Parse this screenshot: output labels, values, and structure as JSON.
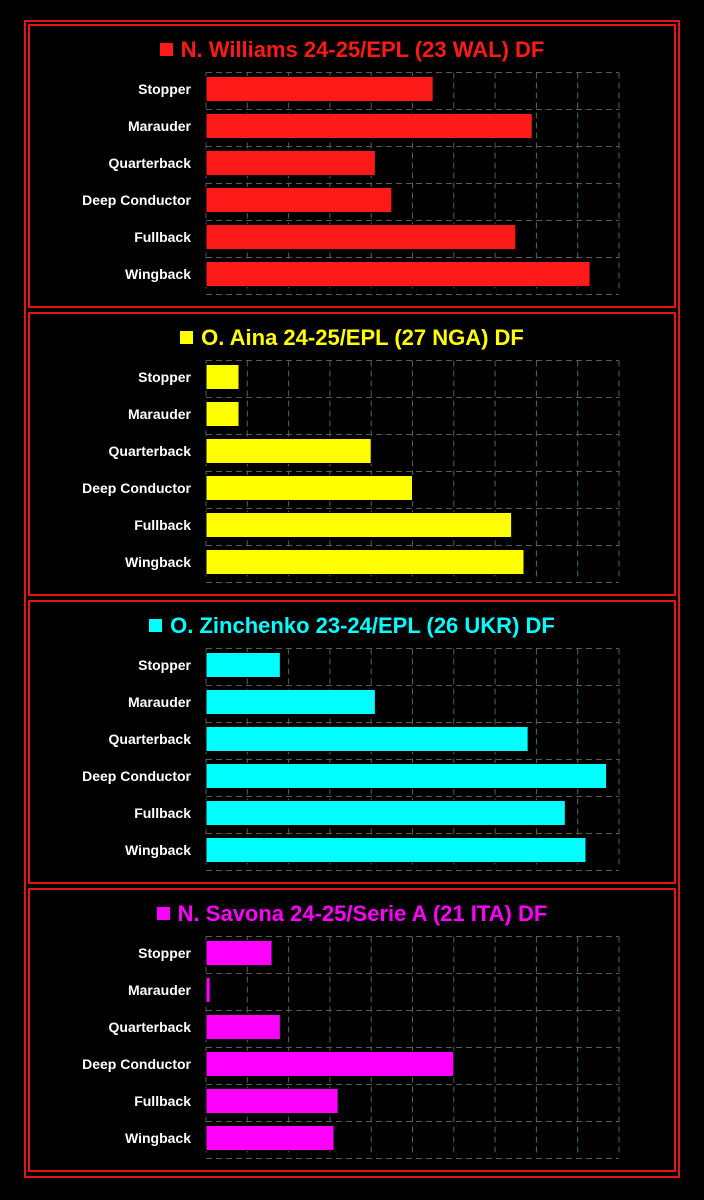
{
  "chart_data": [
    {
      "type": "bar",
      "orientation": "horizontal",
      "title": "N. Williams 24-25/EPL (23 WAL) DF",
      "color": "#ff1a1a",
      "categories": [
        "Stopper",
        "Marauder",
        "Quarterback",
        "Deep Conductor",
        "Fullback",
        "Wingback"
      ],
      "values": [
        55,
        79,
        41,
        45,
        75,
        93
      ],
      "xlim": [
        0,
        100
      ],
      "grid": true,
      "xlabel": "",
      "ylabel": ""
    },
    {
      "type": "bar",
      "orientation": "horizontal",
      "title": "O. Aina 24-25/EPL (27 NGA) DF",
      "color": "#ffff00",
      "categories": [
        "Stopper",
        "Marauder",
        "Quarterback",
        "Deep Conductor",
        "Fullback",
        "Wingback"
      ],
      "values": [
        8,
        8,
        40,
        50,
        74,
        77
      ],
      "xlim": [
        0,
        100
      ],
      "grid": true,
      "xlabel": "",
      "ylabel": ""
    },
    {
      "type": "bar",
      "orientation": "horizontal",
      "title": "O. Zinchenko 23-24/EPL (26 UKR) DF",
      "color": "#00ffff",
      "categories": [
        "Stopper",
        "Marauder",
        "Quarterback",
        "Deep Conductor",
        "Fullback",
        "Wingback"
      ],
      "values": [
        18,
        41,
        78,
        97,
        87,
        92
      ],
      "xlim": [
        0,
        100
      ],
      "grid": true,
      "xlabel": "",
      "ylabel": ""
    },
    {
      "type": "bar",
      "orientation": "horizontal",
      "title": "N. Savona 24-25/Serie A (21 ITA) DF",
      "color": "#ff00ff",
      "categories": [
        "Stopper",
        "Marauder",
        "Quarterback",
        "Deep Conductor",
        "Fullback",
        "Wingback"
      ],
      "values": [
        16,
        1,
        18,
        60,
        32,
        31
      ],
      "xlim": [
        0,
        100
      ],
      "grid": true,
      "xlabel": "",
      "ylabel": ""
    }
  ],
  "colors": {
    "frame": "#e0161a",
    "background": "#000000",
    "grid": "#5a5a5a",
    "text": "#ffffff"
  }
}
